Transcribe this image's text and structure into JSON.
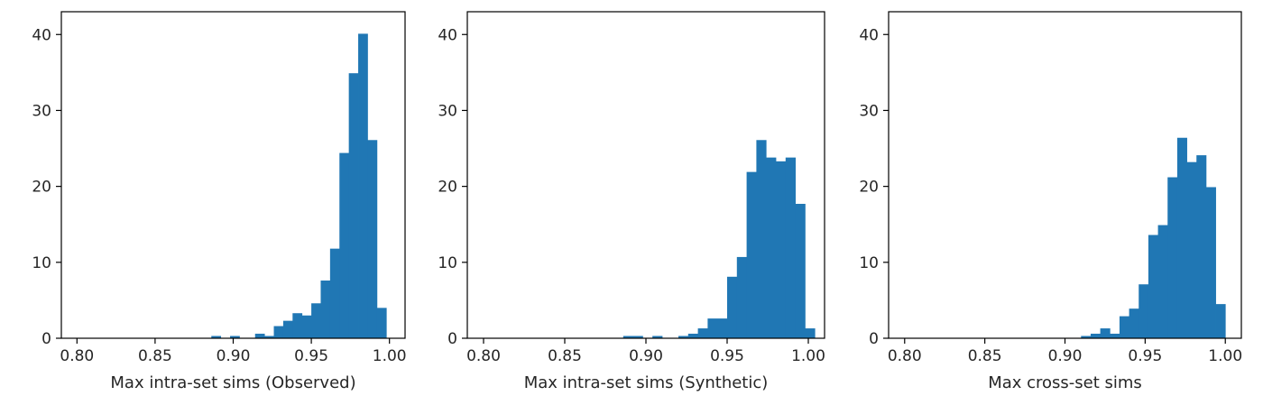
{
  "chart_data": [
    {
      "type": "bar",
      "subtype": "histogram",
      "xlabel": "Max intra-set sims (Observed)",
      "ylabel": "",
      "xlim": [
        0.79,
        1.01
      ],
      "ylim": [
        0,
        43
      ],
      "xticks": [
        "0.80",
        "0.85",
        "0.90",
        "0.95",
        "1.00"
      ],
      "yticks": [
        "0",
        "10",
        "20",
        "30",
        "40"
      ],
      "bar_color": "#2077b4",
      "bins": [
        {
          "x0": 0.886,
          "x1": 0.892,
          "value": 0.3
        },
        {
          "x0": 0.898,
          "x1": 0.904,
          "value": 0.3
        },
        {
          "x0": 0.914,
          "x1": 0.92,
          "value": 0.6
        },
        {
          "x0": 0.92,
          "x1": 0.926,
          "value": 0.3
        },
        {
          "x0": 0.926,
          "x1": 0.932,
          "value": 1.6
        },
        {
          "x0": 0.932,
          "x1": 0.938,
          "value": 2.3
        },
        {
          "x0": 0.938,
          "x1": 0.944,
          "value": 3.3
        },
        {
          "x0": 0.944,
          "x1": 0.95,
          "value": 3.0
        },
        {
          "x0": 0.95,
          "x1": 0.956,
          "value": 4.6
        },
        {
          "x0": 0.956,
          "x1": 0.962,
          "value": 7.6
        },
        {
          "x0": 0.962,
          "x1": 0.968,
          "value": 11.8
        },
        {
          "x0": 0.968,
          "x1": 0.974,
          "value": 24.4
        },
        {
          "x0": 0.974,
          "x1": 0.98,
          "value": 34.9
        },
        {
          "x0": 0.98,
          "x1": 0.986,
          "value": 40.1
        },
        {
          "x0": 0.986,
          "x1": 0.992,
          "value": 26.1
        },
        {
          "x0": 0.992,
          "x1": 0.998,
          "value": 4.0
        }
      ]
    },
    {
      "type": "bar",
      "subtype": "histogram",
      "xlabel": "Max intra-set sims (Synthetic)",
      "ylabel": "",
      "xlim": [
        0.79,
        1.01
      ],
      "ylim": [
        0,
        43
      ],
      "xticks": [
        "0.80",
        "0.85",
        "0.90",
        "0.95",
        "1.00"
      ],
      "yticks": [
        "0",
        "10",
        "20",
        "30",
        "40"
      ],
      "bar_color": "#2077b4",
      "bins": [
        {
          "x0": 0.886,
          "x1": 0.898,
          "value": 0.3
        },
        {
          "x0": 0.904,
          "x1": 0.91,
          "value": 0.3
        },
        {
          "x0": 0.92,
          "x1": 0.926,
          "value": 0.3
        },
        {
          "x0": 0.926,
          "x1": 0.932,
          "value": 0.6
        },
        {
          "x0": 0.932,
          "x1": 0.938,
          "value": 1.3
        },
        {
          "x0": 0.938,
          "x1": 0.95,
          "value": 2.6
        },
        {
          "x0": 0.95,
          "x1": 0.956,
          "value": 8.1
        },
        {
          "x0": 0.956,
          "x1": 0.962,
          "value": 10.7
        },
        {
          "x0": 0.962,
          "x1": 0.968,
          "value": 21.9
        },
        {
          "x0": 0.968,
          "x1": 0.974,
          "value": 26.1
        },
        {
          "x0": 0.974,
          "x1": 0.98,
          "value": 23.8
        },
        {
          "x0": 0.98,
          "x1": 0.986,
          "value": 23.3
        },
        {
          "x0": 0.986,
          "x1": 0.992,
          "value": 23.8
        },
        {
          "x0": 0.992,
          "x1": 0.998,
          "value": 17.7
        },
        {
          "x0": 0.998,
          "x1": 1.004,
          "value": 1.3
        }
      ]
    },
    {
      "type": "bar",
      "subtype": "histogram",
      "xlabel": "Max cross-set sims",
      "ylabel": "",
      "xlim": [
        0.79,
        1.01
      ],
      "ylim": [
        0,
        43
      ],
      "xticks": [
        "0.80",
        "0.85",
        "0.90",
        "0.95",
        "1.00"
      ],
      "yticks": [
        "0",
        "10",
        "20",
        "30",
        "40"
      ],
      "bar_color": "#2077b4",
      "bins": [
        {
          "x0": 0.91,
          "x1": 0.916,
          "value": 0.3
        },
        {
          "x0": 0.916,
          "x1": 0.922,
          "value": 0.6
        },
        {
          "x0": 0.922,
          "x1": 0.928,
          "value": 1.3
        },
        {
          "x0": 0.928,
          "x1": 0.934,
          "value": 0.6
        },
        {
          "x0": 0.934,
          "x1": 0.94,
          "value": 2.9
        },
        {
          "x0": 0.94,
          "x1": 0.946,
          "value": 3.9
        },
        {
          "x0": 0.946,
          "x1": 0.952,
          "value": 7.1
        },
        {
          "x0": 0.952,
          "x1": 0.958,
          "value": 13.6
        },
        {
          "x0": 0.958,
          "x1": 0.964,
          "value": 14.9
        },
        {
          "x0": 0.964,
          "x1": 0.97,
          "value": 21.2
        },
        {
          "x0": 0.97,
          "x1": 0.976,
          "value": 26.4
        },
        {
          "x0": 0.976,
          "x1": 0.982,
          "value": 23.2
        },
        {
          "x0": 0.982,
          "x1": 0.988,
          "value": 24.1
        },
        {
          "x0": 0.988,
          "x1": 0.994,
          "value": 19.9
        },
        {
          "x0": 0.994,
          "x1": 1.0,
          "value": 4.5
        }
      ]
    }
  ]
}
